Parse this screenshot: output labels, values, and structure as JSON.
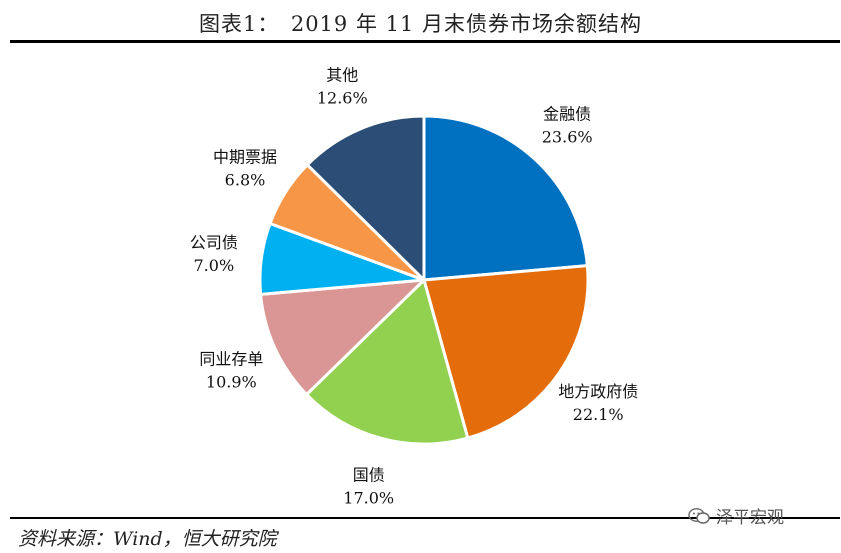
{
  "title": "图表1：　2019 年 11 月末债券市场余额结构",
  "source": "资料来源：Wind，恒大研究院",
  "watermark": {
    "text": "泽平宏观",
    "icon": "wechat-icon"
  },
  "chart_data": {
    "type": "pie",
    "title": "图表1：　2019 年 11 月末债券市场余额结构",
    "start_angle_deg": 0,
    "direction": "clockwise",
    "slices": [
      {
        "label": "金融债",
        "pct_text": "23.6%",
        "value": 23.6,
        "color": "#0070C0"
      },
      {
        "label": "地方政府债",
        "pct_text": "22.1%",
        "value": 22.1,
        "color": "#E46C0A"
      },
      {
        "label": "国债",
        "pct_text": "17.0%",
        "value": 17.0,
        "color": "#92D050"
      },
      {
        "label": "同业存单",
        "pct_text": "10.9%",
        "value": 10.9,
        "color": "#D99694"
      },
      {
        "label": "公司债",
        "pct_text": "7.0%",
        "value": 7.0,
        "color": "#00B0F0"
      },
      {
        "label": "中期票据",
        "pct_text": "6.8%",
        "value": 6.8,
        "color": "#F79646"
      },
      {
        "label": "其他",
        "pct_text": "12.6%",
        "value": 12.6,
        "color": "#2C4D75"
      }
    ]
  }
}
